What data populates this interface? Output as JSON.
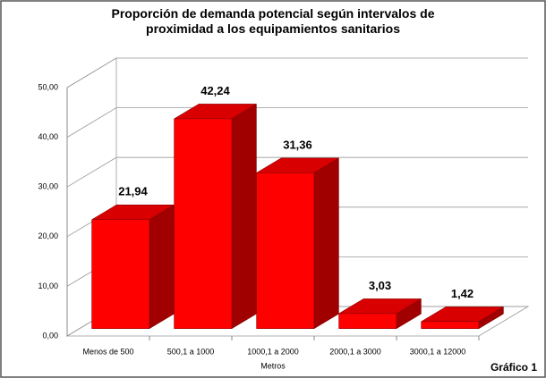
{
  "chart_data": {
    "type": "bar3d",
    "title": "Proporción de demanda potencial según intervalos de proximidad a los equipamientos sanitarios",
    "x_label": "Metros",
    "annotation": "Gráfico 1",
    "categories": [
      "Menos de 500",
      "500,1 a 1000",
      "1000,1 a 2000",
      "2000,1 a 3000",
      "3000,1 a 12000"
    ],
    "values": [
      21.94,
      42.24,
      31.36,
      3.03,
      1.42
    ],
    "value_labels": [
      "21,94",
      "42,24",
      "31,36",
      "3,03",
      "1,42"
    ],
    "color": "#ff0000",
    "ylim": [
      0,
      50
    ],
    "yticks": [
      {
        "value": 0,
        "label": "0,00"
      },
      {
        "value": 10,
        "label": "10,00"
      },
      {
        "value": 20,
        "label": "20,00"
      },
      {
        "value": 30,
        "label": "30,00"
      },
      {
        "value": 40,
        "label": "40,00"
      },
      {
        "value": 50,
        "label": "50,00"
      }
    ],
    "grid": true
  }
}
